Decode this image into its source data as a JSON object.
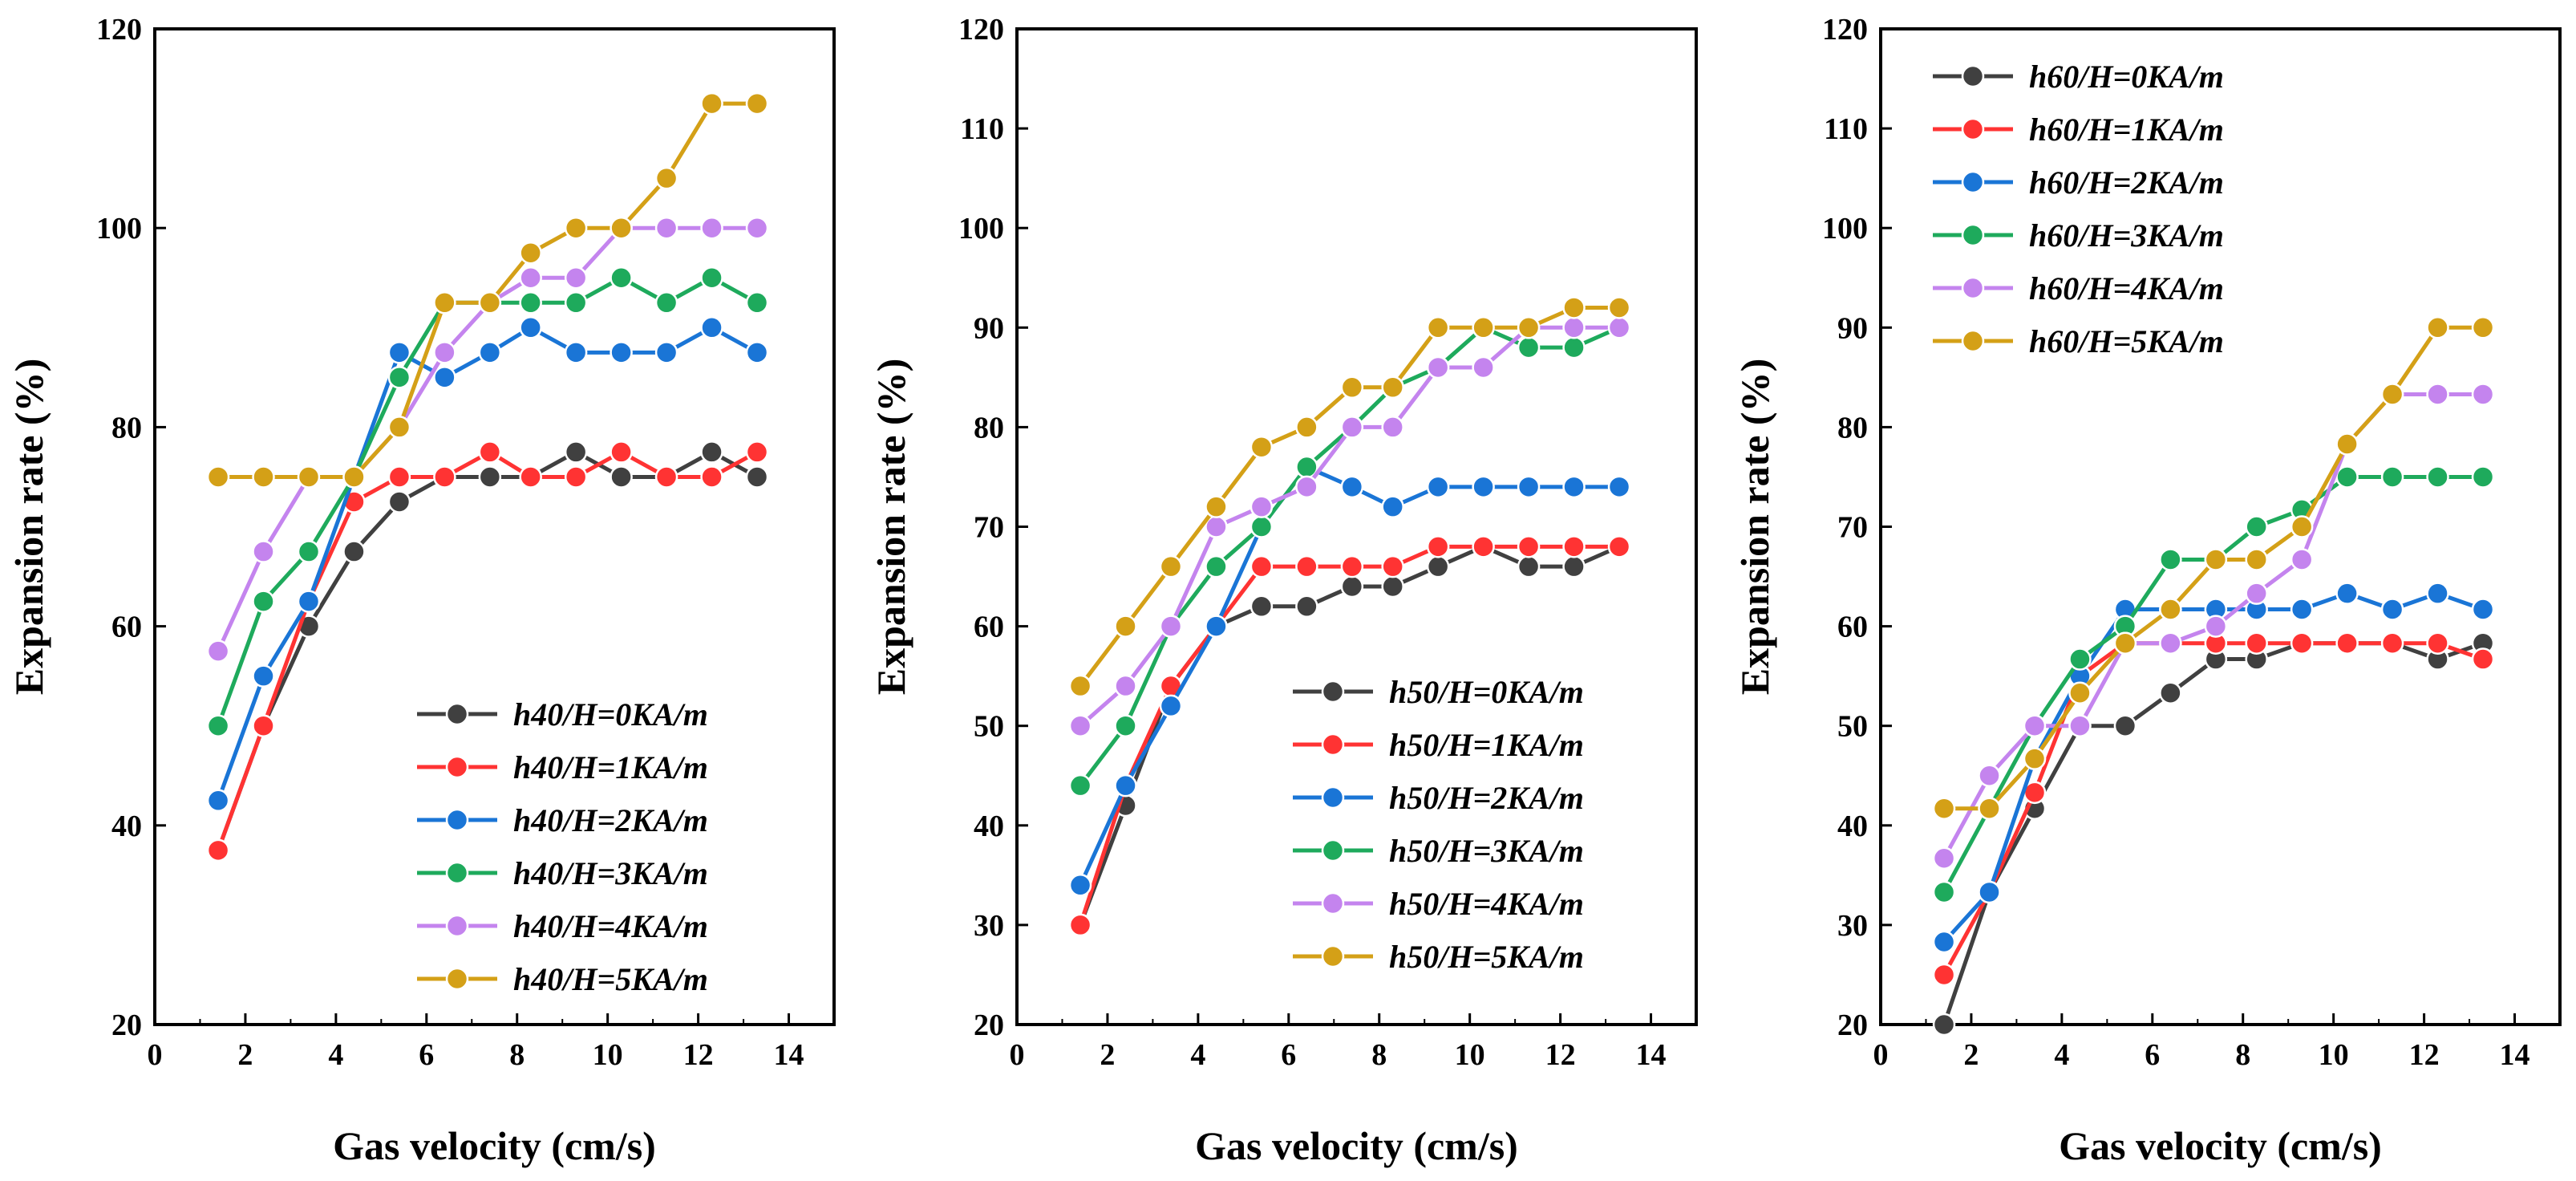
{
  "chart_data": [
    {
      "type": "line",
      "id": "h40",
      "xlabel": "Gas velocity (cm/s)",
      "ylabel": "Expansion rate (%)",
      "xlim": [
        0,
        15
      ],
      "ylim": [
        20,
        120
      ],
      "xticks": [
        0,
        2,
        4,
        6,
        8,
        10,
        12,
        14
      ],
      "yticks": [
        20,
        40,
        60,
        80,
        100,
        120
      ],
      "legend_position": "bottom-right",
      "x": [
        1.4,
        2.4,
        3.4,
        4.4,
        5.4,
        6.4,
        7.4,
        8.3,
        9.3,
        10.3,
        11.3,
        12.3,
        13.3
      ],
      "series": [
        {
          "name": "h40/H=0KA/m",
          "color": "#404040",
          "values": [
            37.5,
            50,
            60,
            67.5,
            72.5,
            75,
            75,
            75,
            77.5,
            75,
            75,
            77.5,
            75
          ]
        },
        {
          "name": "h40/H=1KA/m",
          "color": "#ff3333",
          "values": [
            37.5,
            50,
            62.5,
            72.5,
            75,
            75,
            77.5,
            75,
            75,
            77.5,
            75,
            75,
            77.5
          ]
        },
        {
          "name": "h40/H=2KA/m",
          "color": "#1a75d6",
          "values": [
            42.5,
            55,
            62.5,
            75,
            87.5,
            85,
            87.5,
            90,
            87.5,
            87.5,
            87.5,
            90,
            87.5
          ]
        },
        {
          "name": "h40/H=3KA/m",
          "color": "#1eaa5c",
          "values": [
            50,
            62.5,
            67.5,
            75,
            85,
            92.5,
            92.5,
            92.5,
            92.5,
            95,
            92.5,
            95,
            92.5
          ]
        },
        {
          "name": "h40/H=4KA/m",
          "color": "#c484ee",
          "values": [
            57.5,
            67.5,
            75,
            75,
            80,
            87.5,
            92.5,
            95,
            95,
            100,
            100,
            100,
            100
          ]
        },
        {
          "name": "h40/H=5KA/m",
          "color": "#d4a017",
          "values": [
            75,
            75,
            75,
            75,
            80,
            92.5,
            92.5,
            97.5,
            100,
            100,
            105,
            112.5,
            112.5
          ]
        }
      ]
    },
    {
      "type": "line",
      "id": "h50",
      "xlabel": "Gas velocity (cm/s)",
      "ylabel": "Expansion rate (%)",
      "xlim": [
        0,
        15
      ],
      "ylim": [
        20,
        120
      ],
      "xticks": [
        0,
        2,
        4,
        6,
        8,
        10,
        12,
        14
      ],
      "yticks": [
        20,
        30,
        40,
        50,
        60,
        70,
        80,
        90,
        100,
        110,
        120
      ],
      "legend_position": "bottom-right",
      "x": [
        1.4,
        2.4,
        3.4,
        4.4,
        5.4,
        6.4,
        7.4,
        8.3,
        9.3,
        10.3,
        11.3,
        12.3,
        13.3
      ],
      "series": [
        {
          "name": "h50/H=0KA/m",
          "color": "#404040",
          "values": [
            30,
            42,
            54,
            60,
            62,
            62,
            64,
            64,
            66,
            68,
            66,
            66,
            68
          ]
        },
        {
          "name": "h50/H=1KA/m",
          "color": "#ff3333",
          "values": [
            30,
            44,
            54,
            60,
            66,
            66,
            66,
            66,
            68,
            68,
            68,
            68,
            68
          ]
        },
        {
          "name": "h50/H=2KA/m",
          "color": "#1a75d6",
          "values": [
            34,
            44,
            52,
            60,
            70,
            76,
            74,
            72,
            74,
            74,
            74,
            74,
            74
          ]
        },
        {
          "name": "h50/H=3KA/m",
          "color": "#1eaa5c",
          "values": [
            44,
            50,
            60,
            66,
            70,
            76,
            80,
            84,
            86,
            90,
            88,
            88,
            90
          ]
        },
        {
          "name": "h50/H=4KA/m",
          "color": "#c484ee",
          "values": [
            50,
            54,
            60,
            70,
            72,
            74,
            80,
            80,
            86,
            86,
            90,
            90,
            90
          ]
        },
        {
          "name": "h50/H=5KA/m",
          "color": "#d4a017",
          "values": [
            54,
            60,
            66,
            72,
            78,
            80,
            84,
            84,
            90,
            90,
            90,
            92,
            92
          ]
        }
      ]
    },
    {
      "type": "line",
      "id": "h60",
      "xlabel": "Gas velocity (cm/s)",
      "ylabel": "Expansion rate (%)",
      "xlim": [
        0,
        15
      ],
      "ylim": [
        20,
        120
      ],
      "xticks": [
        0,
        2,
        4,
        6,
        8,
        10,
        12,
        14
      ],
      "yticks": [
        20,
        30,
        40,
        50,
        60,
        70,
        80,
        90,
        100,
        110,
        120
      ],
      "legend_position": "top-left",
      "x": [
        1.4,
        2.4,
        3.4,
        4.4,
        5.4,
        6.4,
        7.4,
        8.3,
        9.3,
        10.3,
        11.3,
        12.3,
        13.3
      ],
      "series": [
        {
          "name": "h60/H=0KA/m",
          "color": "#404040",
          "values": [
            20,
            33.3,
            41.7,
            50,
            50,
            53.3,
            56.7,
            56.7,
            58.3,
            58.3,
            58.3,
            56.7,
            58.3
          ]
        },
        {
          "name": "h60/H=1KA/m",
          "color": "#ff3333",
          "values": [
            25,
            33.3,
            43.3,
            55,
            58.3,
            58.3,
            58.3,
            58.3,
            58.3,
            58.3,
            58.3,
            58.3,
            56.7
          ]
        },
        {
          "name": "h60/H=2KA/m",
          "color": "#1a75d6",
          "values": [
            28.3,
            33.3,
            46.7,
            55,
            61.7,
            61.7,
            61.7,
            61.7,
            61.7,
            63.3,
            61.7,
            63.3,
            61.7
          ]
        },
        {
          "name": "h60/H=3KA/m",
          "color": "#1eaa5c",
          "values": [
            33.3,
            41.7,
            50,
            56.7,
            60,
            66.7,
            66.7,
            70,
            71.7,
            75,
            75,
            75,
            75
          ]
        },
        {
          "name": "h60/H=4KA/m",
          "color": "#c484ee",
          "values": [
            36.7,
            45,
            50,
            50,
            58.3,
            58.3,
            60,
            63.3,
            66.7,
            78.3,
            83.3,
            83.3,
            83.3
          ]
        },
        {
          "name": "h60/H=5KA/m",
          "color": "#d4a017",
          "values": [
            41.7,
            41.7,
            46.7,
            53.3,
            58.3,
            61.7,
            66.7,
            66.7,
            70,
            78.3,
            83.3,
            90,
            90
          ]
        }
      ]
    }
  ]
}
